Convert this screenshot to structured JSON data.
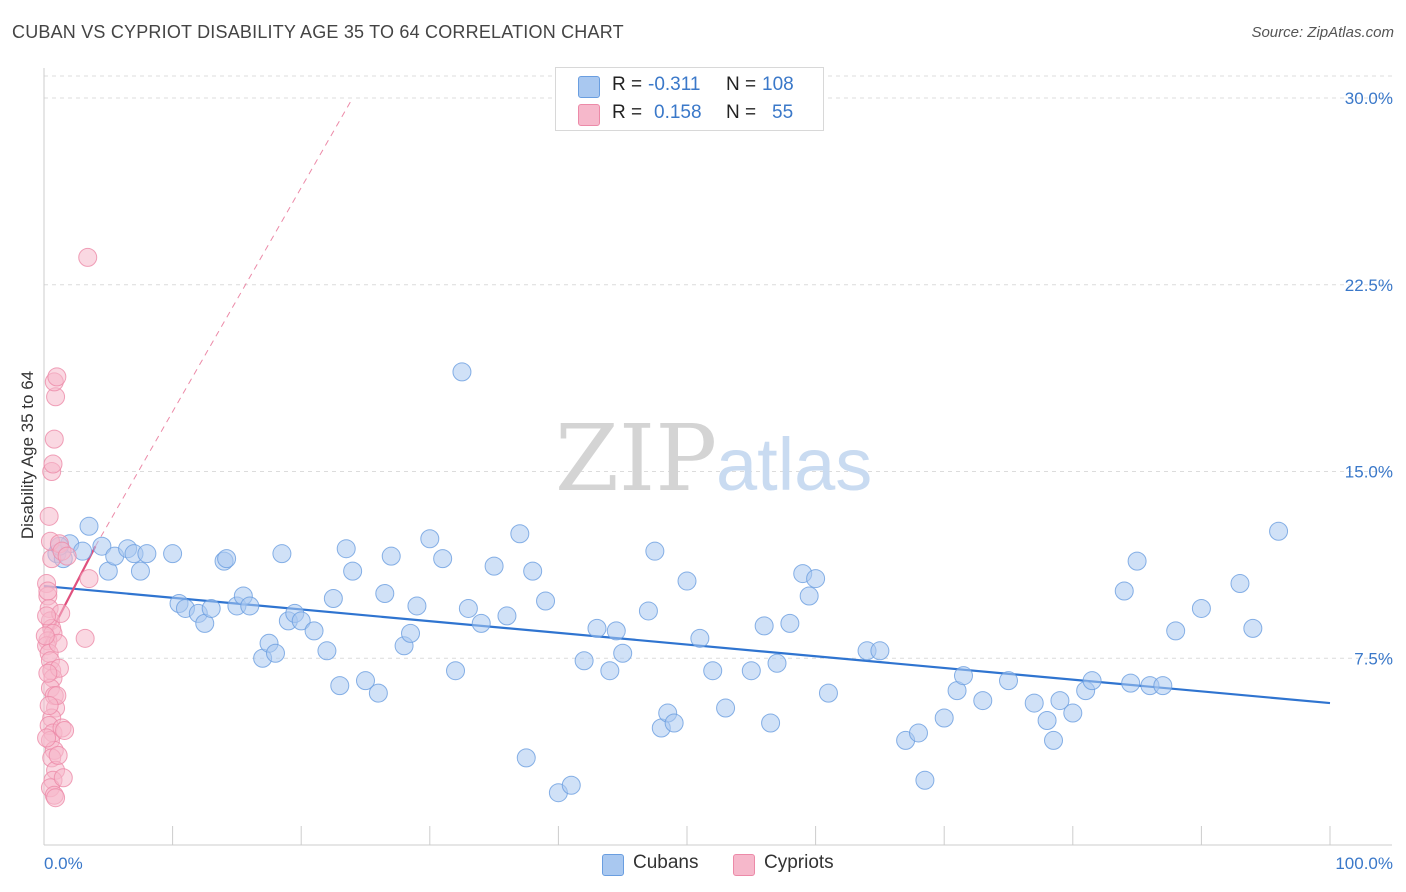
{
  "title": "CUBAN VS CYPRIOT DISABILITY AGE 35 TO 64 CORRELATION CHART",
  "source": "Source: ZipAtlas.com",
  "watermark": {
    "zip": "ZIP",
    "atlas": "atlas"
  },
  "colors": {
    "blue_fill": "#a9c8f0",
    "blue_stroke": "#6a9ee0",
    "blue_line": "#2f74d0",
    "pink_fill": "#f6b8cb",
    "pink_stroke": "#ec8aa8",
    "pink_line": "#e0507e",
    "axis_label": "#3a78c9",
    "grid": "#dcdcdc"
  },
  "legend": {
    "r_label": "R =",
    "n_label": "N =",
    "rows": [
      {
        "series": "Cubans",
        "r": "-0.311",
        "n": "108"
      },
      {
        "series": "Cypriots",
        "r": "0.158",
        "n": "55"
      }
    ]
  },
  "chart_data": {
    "type": "scatter",
    "title": "CUBAN VS CYPRIOT DISABILITY AGE 35 TO 64 CORRELATION CHART",
    "xlabel": "",
    "ylabel": "Disability Age 35 to 64",
    "xlim": [
      0,
      100
    ],
    "ylim": [
      0,
      30
    ],
    "x_tick_labels": [
      "0.0%",
      "100.0%"
    ],
    "y_ticks": [
      7.5,
      15.0,
      22.5,
      30.0
    ],
    "y_tick_labels": [
      "7.5%",
      "15.0%",
      "22.5%",
      "30.0%"
    ],
    "grid": "horizontal dashed",
    "legend_position": "top-center",
    "series": [
      {
        "name": "Cubans",
        "color": "#a9c8f0",
        "trend": {
          "x": [
            0,
            100
          ],
          "y": [
            10.4,
            5.7
          ]
        },
        "points": [
          [
            1,
            11.7
          ],
          [
            2,
            12.1
          ],
          [
            1.5,
            11.5
          ],
          [
            3.5,
            12.8
          ],
          [
            3,
            11.8
          ],
          [
            4.5,
            12.0
          ],
          [
            5,
            11.0
          ],
          [
            5.5,
            11.6
          ],
          [
            6.5,
            11.9
          ],
          [
            7,
            11.7
          ],
          [
            7.5,
            11.0
          ],
          [
            8,
            11.7
          ],
          [
            10,
            11.7
          ],
          [
            10.5,
            9.7
          ],
          [
            11,
            9.5
          ],
          [
            12,
            9.3
          ],
          [
            12.5,
            8.9
          ],
          [
            13,
            9.5
          ],
          [
            14,
            11.4
          ],
          [
            14.2,
            11.5
          ],
          [
            15,
            9.6
          ],
          [
            15.5,
            10.0
          ],
          [
            16,
            9.6
          ],
          [
            17,
            7.5
          ],
          [
            17.5,
            8.1
          ],
          [
            18,
            7.7
          ],
          [
            18.5,
            11.7
          ],
          [
            19,
            9.0
          ],
          [
            19.5,
            9.3
          ],
          [
            20,
            9.0
          ],
          [
            21,
            8.6
          ],
          [
            22,
            7.8
          ],
          [
            22.5,
            9.9
          ],
          [
            23,
            6.4
          ],
          [
            23.5,
            11.9
          ],
          [
            24,
            11.0
          ],
          [
            25,
            6.6
          ],
          [
            26,
            6.1
          ],
          [
            26.5,
            10.1
          ],
          [
            27,
            11.6
          ],
          [
            28,
            8.0
          ],
          [
            28.5,
            8.5
          ],
          [
            29,
            9.6
          ],
          [
            30,
            12.3
          ],
          [
            31,
            11.5
          ],
          [
            32,
            7.0
          ],
          [
            32.5,
            19.0
          ],
          [
            33,
            9.5
          ],
          [
            34,
            8.9
          ],
          [
            35,
            11.2
          ],
          [
            36,
            9.2
          ],
          [
            37,
            12.5
          ],
          [
            37.5,
            3.5
          ],
          [
            38,
            11.0
          ],
          [
            39,
            9.8
          ],
          [
            40,
            2.1
          ],
          [
            41,
            2.4
          ],
          [
            42,
            7.4
          ],
          [
            43,
            8.7
          ],
          [
            44,
            7.0
          ],
          [
            44.5,
            8.6
          ],
          [
            45,
            7.7
          ],
          [
            47,
            9.4
          ],
          [
            47.5,
            11.8
          ],
          [
            48,
            4.7
          ],
          [
            48.5,
            5.3
          ],
          [
            49,
            4.9
          ],
          [
            50,
            10.6
          ],
          [
            51,
            8.3
          ],
          [
            52,
            7.0
          ],
          [
            53,
            5.5
          ],
          [
            55,
            7.0
          ],
          [
            56,
            8.8
          ],
          [
            56.5,
            4.9
          ],
          [
            57,
            7.3
          ],
          [
            58,
            8.9
          ],
          [
            59,
            10.9
          ],
          [
            59.5,
            10.0
          ],
          [
            60,
            10.7
          ],
          [
            61,
            6.1
          ],
          [
            64,
            7.8
          ],
          [
            65,
            7.8
          ],
          [
            67,
            4.2
          ],
          [
            68,
            4.5
          ],
          [
            68.5,
            2.6
          ],
          [
            70,
            5.1
          ],
          [
            71,
            6.2
          ],
          [
            71.5,
            6.8
          ],
          [
            73,
            5.8
          ],
          [
            75,
            6.6
          ],
          [
            77,
            5.7
          ],
          [
            78,
            5.0
          ],
          [
            78.5,
            4.2
          ],
          [
            79,
            5.8
          ],
          [
            80,
            5.3
          ],
          [
            81,
            6.2
          ],
          [
            81.5,
            6.6
          ],
          [
            84,
            10.2
          ],
          [
            84.5,
            6.5
          ],
          [
            85,
            11.4
          ],
          [
            86,
            6.4
          ],
          [
            87,
            6.4
          ],
          [
            88,
            8.6
          ],
          [
            90,
            9.5
          ],
          [
            93,
            10.5
          ],
          [
            94,
            8.7
          ],
          [
            96,
            12.6
          ],
          [
            1.2,
            12.0
          ]
        ]
      },
      {
        "name": "Cypriots",
        "color": "#f6b8cb",
        "trend": {
          "x": [
            0,
            4
          ],
          "y": [
            8.0,
            12.0
          ]
        },
        "trend_extension": {
          "x": [
            4,
            24
          ],
          "y": [
            12.0,
            30.0
          ]
        },
        "points": [
          [
            0.2,
            10.5
          ],
          [
            0.3,
            10.0
          ],
          [
            0.4,
            9.5
          ],
          [
            0.5,
            9.0
          ],
          [
            0.6,
            8.7
          ],
          [
            0.7,
            8.5
          ],
          [
            0.3,
            8.2
          ],
          [
            0.2,
            8.0
          ],
          [
            0.4,
            7.7
          ],
          [
            0.5,
            7.4
          ],
          [
            0.6,
            7.0
          ],
          [
            0.7,
            6.7
          ],
          [
            0.5,
            6.3
          ],
          [
            0.8,
            6.0
          ],
          [
            0.9,
            5.5
          ],
          [
            0.6,
            5.1
          ],
          [
            0.4,
            4.8
          ],
          [
            0.7,
            4.5
          ],
          [
            0.5,
            4.2
          ],
          [
            0.8,
            3.8
          ],
          [
            0.6,
            3.5
          ],
          [
            0.9,
            3.0
          ],
          [
            0.7,
            2.6
          ],
          [
            0.5,
            2.3
          ],
          [
            0.8,
            2.0
          ],
          [
            0.6,
            11.5
          ],
          [
            0.5,
            12.2
          ],
          [
            0.4,
            13.2
          ],
          [
            0.6,
            15.0
          ],
          [
            0.7,
            15.3
          ],
          [
            0.8,
            16.3
          ],
          [
            0.9,
            18.0
          ],
          [
            0.8,
            18.6
          ],
          [
            1.0,
            18.8
          ],
          [
            3.4,
            23.6
          ],
          [
            3.2,
            8.3
          ],
          [
            3.5,
            10.7
          ],
          [
            1.3,
            9.3
          ],
          [
            1.1,
            8.1
          ],
          [
            1.2,
            7.1
          ],
          [
            1.0,
            6.0
          ],
          [
            1.4,
            4.7
          ],
          [
            1.6,
            4.6
          ],
          [
            1.1,
            3.6
          ],
          [
            1.5,
            2.7
          ],
          [
            0.9,
            1.9
          ],
          [
            1.2,
            12.1
          ],
          [
            1.4,
            11.8
          ],
          [
            0.3,
            10.2
          ],
          [
            0.2,
            9.2
          ],
          [
            0.1,
            8.4
          ],
          [
            0.3,
            6.9
          ],
          [
            0.4,
            5.6
          ],
          [
            0.2,
            4.3
          ],
          [
            1.8,
            11.6
          ]
        ]
      }
    ]
  }
}
